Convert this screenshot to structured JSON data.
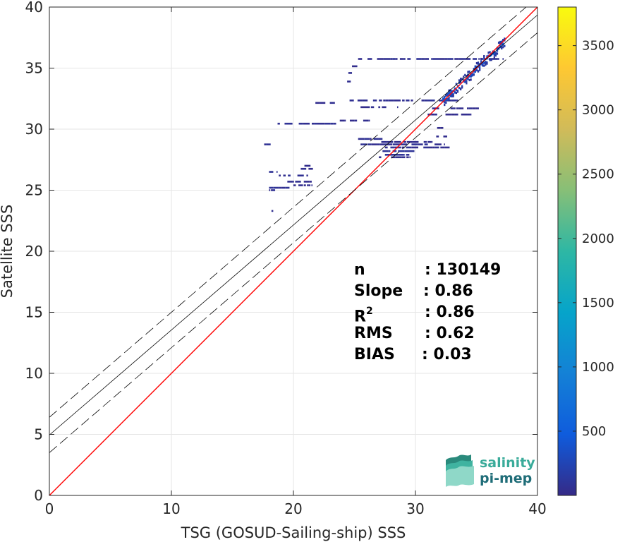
{
  "chart_data": {
    "type": "heatmap",
    "xlabel": "TSG (GOSUD-Sailing-ship) SSS",
    "ylabel": "Satellite SSS",
    "xlim": [
      0,
      40
    ],
    "ylim": [
      0,
      40
    ],
    "x_ticks": [
      "0",
      "10",
      "20",
      "30",
      "40"
    ],
    "y_ticks": [
      "0",
      "5",
      "10",
      "15",
      "20",
      "25",
      "30",
      "35",
      "40"
    ],
    "grid": true,
    "colorbar": {
      "range": [
        0,
        3800
      ],
      "ticks": [
        "500",
        "1000",
        "1500",
        "2000",
        "2500",
        "3000",
        "3500"
      ],
      "colormap": "parula"
    },
    "lines": [
      {
        "role": "identity",
        "slope": 1.0,
        "intercept": 0.0,
        "color": "#ff0000",
        "style": "solid"
      },
      {
        "role": "regression",
        "slope": 0.86,
        "intercept": 4.95,
        "color": "#000000",
        "style": "solid"
      },
      {
        "role": "regression-plus",
        "slope": 0.86,
        "intercept": 6.4,
        "color": "#000000",
        "style": "dashed"
      },
      {
        "role": "regression-minus",
        "slope": 0.86,
        "intercept": 3.5,
        "color": "#000000",
        "style": "dashed"
      }
    ],
    "segments": [
      {
        "x1": 25.3,
        "x2": 37.2,
        "y": 35.75,
        "c": 60
      },
      {
        "x1": 24.8,
        "x2": 25.2,
        "y": 35.15,
        "c": 40
      },
      {
        "x1": 24.5,
        "x2": 24.8,
        "y": 34.6,
        "c": 40
      },
      {
        "x1": 24.4,
        "x2": 24.7,
        "y": 33.9,
        "c": 40
      },
      {
        "x1": 24.6,
        "x2": 33.5,
        "y": 32.35,
        "c": 60
      },
      {
        "x1": 21.8,
        "x2": 23.4,
        "y": 32.15,
        "c": 40
      },
      {
        "x1": 25.5,
        "x2": 28.5,
        "y": 31.8,
        "c": 40
      },
      {
        "x1": 31.2,
        "x2": 35.2,
        "y": 31.7,
        "c": 40
      },
      {
        "x1": 31.0,
        "x2": 34.5,
        "y": 31.2,
        "c": 40
      },
      {
        "x1": 23.8,
        "x2": 26.2,
        "y": 30.7,
        "c": 40
      },
      {
        "x1": 18.7,
        "x2": 23.5,
        "y": 30.45,
        "c": 60
      },
      {
        "x1": 31.2,
        "x2": 32.3,
        "y": 30.1,
        "c": 40
      },
      {
        "x1": 31.7,
        "x2": 32.6,
        "y": 29.4,
        "c": 40
      },
      {
        "x1": 25.3,
        "x2": 27.3,
        "y": 29.2,
        "c": 60
      },
      {
        "x1": 27.2,
        "x2": 31.4,
        "y": 28.95,
        "c": 40
      },
      {
        "x1": 17.6,
        "x2": 18.4,
        "y": 28.75,
        "c": 60
      },
      {
        "x1": 25.5,
        "x2": 32.5,
        "y": 28.75,
        "c": 60
      },
      {
        "x1": 27.5,
        "x2": 33.0,
        "y": 28.5,
        "c": 50
      },
      {
        "x1": 27.3,
        "x2": 30.0,
        "y": 28.2,
        "c": 120
      },
      {
        "x1": 27.5,
        "x2": 29.5,
        "y": 27.9,
        "c": 80
      },
      {
        "x1": 27.0,
        "x2": 29.6,
        "y": 27.7,
        "c": 40
      },
      {
        "x1": 20.9,
        "x2": 21.4,
        "y": 27.0,
        "c": 40
      },
      {
        "x1": 20.6,
        "x2": 21.6,
        "y": 26.75,
        "c": 40
      },
      {
        "x1": 18.0,
        "x2": 18.8,
        "y": 26.5,
        "c": 60
      },
      {
        "x1": 18.8,
        "x2": 21.2,
        "y": 26.2,
        "c": 60
      },
      {
        "x1": 19.5,
        "x2": 21.5,
        "y": 25.7,
        "c": 40
      },
      {
        "x1": 20.0,
        "x2": 21.5,
        "y": 25.4,
        "c": 40
      },
      {
        "x1": 18.0,
        "x2": 19.8,
        "y": 25.2,
        "c": 60
      },
      {
        "x1": 18.0,
        "x2": 18.5,
        "y": 25.0,
        "c": 60
      },
      {
        "x1": 18.2,
        "x2": 18.7,
        "y": 23.3,
        "c": 40
      }
    ],
    "core": {
      "x_start": 32.2,
      "x_end": 37.3,
      "slope": 0.96,
      "intercept": 1.4,
      "spread": 0.45,
      "peak": 320
    }
  },
  "stats": {
    "n_label": "n",
    "n_value": ": 130149",
    "slope_label": "Slope",
    "slope_value": ": 0.86",
    "r2_label": "R",
    "r2_sup": "2",
    "r2_value": ": 0.86",
    "rms_label": "RMS",
    "rms_value": ": 0.62",
    "bias_label": "BIAS",
    "bias_value": ": 0.03"
  },
  "logo": {
    "line1": "salinity",
    "line2": "pi-mep",
    "color1": "#3aab9a",
    "color2": "#1f6d78"
  }
}
